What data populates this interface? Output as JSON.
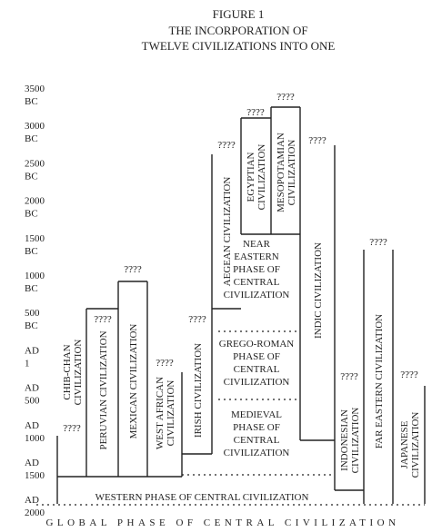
{
  "figure": {
    "label": "FIGURE 1",
    "title": [
      "THE INCORPORATION OF",
      "TWELVE CIVILIZATIONS INTO ONE"
    ]
  },
  "time_axis": [
    [
      "3500",
      "BC"
    ],
    [
      "3000",
      "BC"
    ],
    [
      "2500",
      "BC"
    ],
    [
      "2000",
      "BC"
    ],
    [
      "1500",
      "BC"
    ],
    [
      "1000",
      "BC"
    ],
    [
      "500",
      "BC"
    ],
    [
      "AD",
      "1"
    ],
    [
      "AD",
      "500"
    ],
    [
      "AD",
      "1000"
    ],
    [
      "AD",
      "1500"
    ],
    [
      "AD",
      "2000"
    ]
  ],
  "civilizations": [
    {
      "label": [
        "CHIB-CHAN",
        "CIVILIZATION"
      ],
      "origin": "????"
    },
    {
      "label": [
        "PERUVIAN CIVILIZATION"
      ],
      "origin": "????"
    },
    {
      "label": [
        "MEXICAN CIVILIZATION"
      ],
      "origin": "????"
    },
    {
      "label": [
        "WEST AFRICAN",
        "CIVILIZATION"
      ],
      "origin": "????"
    },
    {
      "label": [
        "IRISH CIVILIZATION"
      ],
      "origin": "????"
    },
    {
      "label": [
        "AEGEAN CIVILIZATION"
      ],
      "origin": "????"
    },
    {
      "label": [
        "EGYPTIAN",
        "CIVILIZATION"
      ],
      "origin": "????"
    },
    {
      "label": [
        "MESOPOTAMIAN",
        "CIVILIZATION"
      ],
      "origin": "????"
    },
    {
      "label": [
        "INDIC CIVILIZATION"
      ],
      "origin": "????"
    },
    {
      "label": [
        "INDONESIAN",
        "CIVILIZATION"
      ],
      "origin": "????"
    },
    {
      "label": [
        "FAR EASTERN CIVILIZATION"
      ],
      "origin": "????"
    },
    {
      "label": [
        "JAPANESE",
        "CIVILIZATION"
      ],
      "origin": "????"
    }
  ],
  "phases": [
    {
      "label": [
        "NEAR",
        "EASTERN",
        "PHASE OF",
        "CENTRAL",
        "CIVILIZATION"
      ]
    },
    {
      "label": [
        "GREGO-ROMAN",
        "PHASE OF",
        "CENTRAL",
        "CIVILIZATION"
      ]
    },
    {
      "label": [
        "MEDIEVAL",
        "PHASE OF",
        "CENTRAL",
        "CIVILIZATION"
      ]
    },
    {
      "label": [
        "WESTERN PHASE OF CENTRAL CIVILIZATION"
      ]
    },
    {
      "label": [
        "GLOBAL PHASE OF CENTRAL CIVILIZATION"
      ]
    }
  ]
}
